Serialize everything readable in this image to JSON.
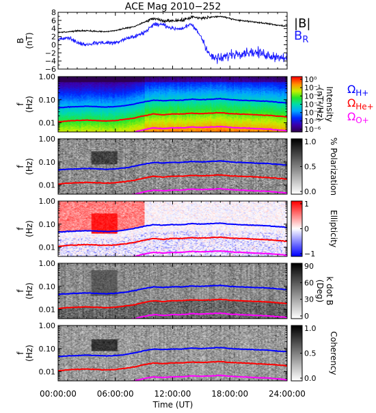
{
  "title": "ACE Mag 2010−252",
  "x_axis": {
    "label": "Time (UT)",
    "tick_labels": [
      "00:00:00",
      "06:00:00",
      "12:00:00",
      "18:00:00",
      "24:00:00"
    ]
  },
  "colors": {
    "bmag": "#000000",
    "br": "#1a1aff",
    "oh": "#0000ff",
    "ohe": "#ff0000",
    "oo": "#ff00ff"
  },
  "chart_data": [
    {
      "type": "line",
      "panel": "B",
      "ylabel": "B",
      "yunit": "(nT)",
      "ylim": [
        -6,
        8
      ],
      "yticks": [
        "8",
        "6",
        "4",
        "2",
        "0",
        "−2",
        "−4",
        "−6"
      ],
      "yticks_values": [
        8,
        6,
        4,
        2,
        0,
        -2,
        -4,
        -6
      ],
      "xlim": [
        0,
        24
      ],
      "legend": [
        "|B|",
        "B"
      ],
      "legend_subscript": [
        "",
        "R"
      ],
      "series": [
        {
          "name": "|B|",
          "x": [
            0,
            1,
            2,
            3,
            4,
            5,
            6,
            7,
            8,
            9,
            10,
            11,
            12,
            13,
            14,
            15,
            16,
            17,
            18,
            19,
            20,
            21,
            22,
            23,
            24
          ],
          "y": [
            3.0,
            3.2,
            3.4,
            3.5,
            3.3,
            3.2,
            3.5,
            4.0,
            4.5,
            5.5,
            6.5,
            5.8,
            6.0,
            6.0,
            6.8,
            6.5,
            6.8,
            7.0,
            6.5,
            6.0,
            5.8,
            5.5,
            5.2,
            4.8,
            4.6
          ]
        },
        {
          "name": "B_R",
          "x": [
            0,
            1,
            2,
            3,
            4,
            5,
            6,
            7,
            8,
            9,
            10,
            11,
            12,
            13,
            14,
            15,
            16,
            17,
            18,
            19,
            20,
            21,
            22,
            23,
            24
          ],
          "y": [
            1.0,
            2.0,
            0.5,
            0.0,
            0.5,
            0.5,
            0.5,
            1.5,
            2.0,
            3.0,
            5.0,
            5.0,
            4.0,
            4.0,
            5.0,
            2.0,
            -3.0,
            -3.5,
            -2.5,
            -2.0,
            -1.8,
            -2.0,
            -2.5,
            -3.0,
            -3.0
          ]
        }
      ]
    },
    {
      "type": "heatmap",
      "panel": "Intensity",
      "ylabel": "f",
      "yunit": "(Hz)",
      "yscale": "log",
      "ylim": [
        0.004,
        1.0
      ],
      "yticks": [
        "1.00",
        "0.10",
        "0.01"
      ],
      "yticks_values": [
        1.0,
        0.1,
        0.01
      ],
      "colorbar_label": "Intensity",
      "colorbar_unit": "(nT²/Hz)",
      "colorbar_ticks": [
        "10⁰",
        "10⁻¹",
        "10⁻²",
        "10⁻³",
        "10⁻⁴",
        "10⁻⁵",
        "10⁻⁶"
      ],
      "legend": [
        "Ω",
        "Ω",
        "Ω"
      ],
      "legend_subscript": [
        "H+",
        "He+",
        "O+"
      ]
    },
    {
      "type": "heatmap",
      "panel": "Polarization",
      "ylabel": "f",
      "yunit": "(Hz)",
      "yscale": "log",
      "yticks": [
        "1.00",
        "0.10",
        "0.01"
      ],
      "colorbar_label": "% Polarization",
      "colorbar_ticks": [
        "1.0",
        "0.5",
        "0.0"
      ]
    },
    {
      "type": "heatmap",
      "panel": "Ellipticity",
      "ylabel": "f",
      "yunit": "(Hz)",
      "yscale": "log",
      "yticks": [
        "1.00",
        "0.10",
        "0.01"
      ],
      "colorbar_label": "Ellipticity",
      "colorbar_ticks": [
        "1",
        "0",
        "−1"
      ]
    },
    {
      "type": "heatmap",
      "panel": "k dot B",
      "ylabel": "f",
      "yunit": "(Hz)",
      "yscale": "log",
      "yticks": [
        "1.00",
        "0.10",
        "0.01"
      ],
      "colorbar_label": "k dot B",
      "colorbar_unit": "(Deg)",
      "colorbar_ticks": [
        "90",
        "60",
        "30",
        "0"
      ]
    },
    {
      "type": "heatmap",
      "panel": "Coherency",
      "ylabel": "f",
      "yunit": "(Hz)",
      "yscale": "log",
      "yticks": [
        "1.00",
        "0.10",
        "0.01"
      ],
      "colorbar_label": "Coherency",
      "colorbar_ticks": [
        "1.0",
        "0.5",
        "0.0"
      ]
    },
    {
      "type": "line",
      "panel": "gyrofrequencies",
      "note_axis": "x in hours UT, y in Hz (overlaid on every spectrogram panel)",
      "series": [
        {
          "name": "Ω_H+",
          "x": [
            0,
            1,
            2,
            3,
            4,
            5,
            6,
            7,
            8,
            9,
            10,
            11,
            12,
            13,
            14,
            15,
            16,
            17,
            18,
            19,
            20,
            21,
            22,
            23,
            24
          ],
          "y": [
            0.045,
            0.048,
            0.05,
            0.052,
            0.05,
            0.048,
            0.05,
            0.055,
            0.065,
            0.08,
            0.095,
            0.09,
            0.095,
            0.095,
            0.105,
            0.1,
            0.105,
            0.11,
            0.1,
            0.095,
            0.092,
            0.088,
            0.085,
            0.078,
            0.072
          ]
        },
        {
          "name": "Ω_He+",
          "x": [
            0,
            1,
            2,
            3,
            4,
            5,
            6,
            7,
            8,
            9,
            10,
            11,
            12,
            13,
            14,
            15,
            16,
            17,
            18,
            19,
            20,
            21,
            22,
            23,
            24
          ],
          "y": [
            0.011,
            0.012,
            0.0125,
            0.013,
            0.0125,
            0.012,
            0.0125,
            0.014,
            0.016,
            0.02,
            0.024,
            0.022,
            0.024,
            0.024,
            0.026,
            0.025,
            0.026,
            0.0275,
            0.025,
            0.024,
            0.023,
            0.022,
            0.021,
            0.0195,
            0.018
          ]
        },
        {
          "name": "Ω_O+",
          "x": [
            0,
            1,
            2,
            3,
            4,
            5,
            6,
            7,
            8,
            9,
            10,
            11,
            12,
            13,
            14,
            15,
            16,
            17,
            18,
            19,
            20,
            21,
            22,
            23,
            24
          ],
          "y": [
            0.0028,
            0.003,
            0.0031,
            0.0033,
            0.0031,
            0.003,
            0.0031,
            0.0034,
            0.004,
            0.005,
            0.006,
            0.0056,
            0.006,
            0.006,
            0.0066,
            0.0063,
            0.0066,
            0.0069,
            0.0063,
            0.006,
            0.0058,
            0.0055,
            0.0053,
            0.0049,
            0.0045
          ]
        }
      ]
    }
  ]
}
